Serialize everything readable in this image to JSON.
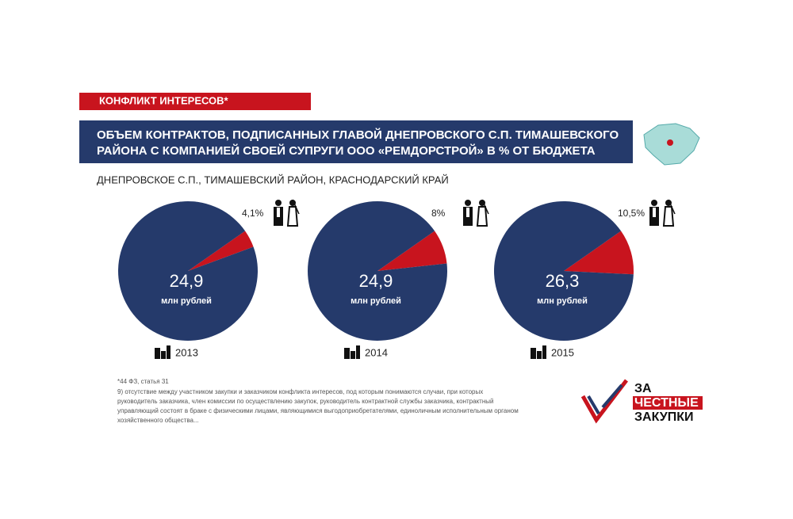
{
  "header": {
    "tag": "КОНФЛИКТ ИНТЕРЕСОВ*",
    "title_lines": [
      "ОБЪЕМ КОНТРАКТОВ, ПОДПИСАННЫХ ГЛАВОЙ ДНЕПРОВСКОГО С.П. ТИМАШЕВСКОГО",
      "РАЙОНА С КОМПАНИЕЙ СВОЕЙ СУПРУГИ ООО «РЕМДОРСТРОЙ» В % ОТ БЮДЖЕТА"
    ],
    "subtitle": "ДНЕПРОВСКОЕ С.П., ТИМАШЕВСКИЙ РАЙОН, КРАСНОДАРСКИЙ КРАЙ"
  },
  "chart_data": [
    {
      "type": "pie",
      "title": "2013",
      "values": [
        4.1,
        95.9
      ],
      "value_labels": [
        "4,1%",
        null
      ],
      "colors": [
        "#c8141e",
        "#253a6b"
      ],
      "center_label": "24,9",
      "center_sublabel": "млн рублей"
    },
    {
      "type": "pie",
      "title": "2014",
      "values": [
        8,
        92
      ],
      "value_labels": [
        "8%",
        null
      ],
      "colors": [
        "#c8141e",
        "#253a6b"
      ],
      "center_label": "24,9",
      "center_sublabel": "млн рублей"
    },
    {
      "type": "pie",
      "title": "2015",
      "values": [
        10.5,
        89.5
      ],
      "value_labels": [
        "10,5%",
        null
      ],
      "colors": [
        "#c8141e",
        "#253a6b"
      ],
      "center_label": "26,3",
      "center_sublabel": "млн рублей"
    }
  ],
  "footnote": {
    "lines": [
      "*44 ФЗ, статья 31",
      "9) отсутствие между участником закупки и заказчиком конфликта интересов, под которым понимаются случаи, при которых",
      "руководитель заказчика, член комиссии по осуществлению закупок, руководитель контрактной службы заказчика, контрактный",
      "управляющий состоят в браке с физическими лицами, являющимися выгодоприобретателями, единоличным исполнительным органом",
      "хозяйственного общества..."
    ]
  },
  "logo": {
    "lines": [
      "ЗА",
      "ЧЕСТНЫЕ",
      "ЗАКУПКИ"
    ]
  }
}
